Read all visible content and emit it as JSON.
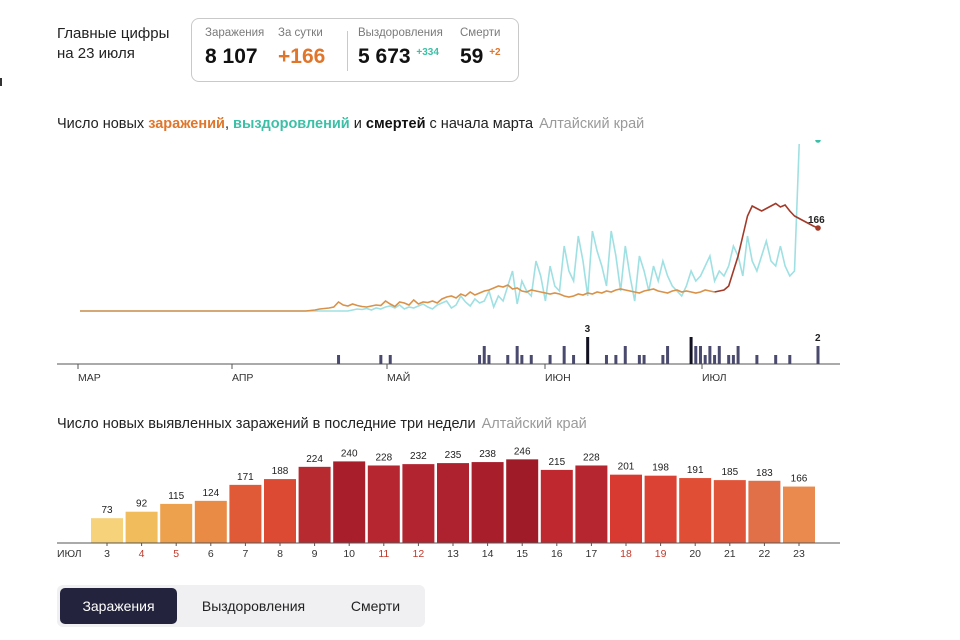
{
  "header": {
    "title_line1": "Главные цифры",
    "title_line2": "на 23 июля"
  },
  "stats": {
    "infections_label": "Заражения",
    "infections_value": "8 107",
    "daily_label": "За сутки",
    "daily_value": "+166",
    "recoveries_label": "Выздоровления",
    "recoveries_value": "5 673",
    "recoveries_delta": "+334",
    "deaths_label": "Смерти",
    "deaths_value": "59",
    "deaths_delta": "+2"
  },
  "chart1": {
    "title_part1": "Число новых ",
    "title_infections": "заражений",
    "title_sep": ", ",
    "title_recoveries": "выздоровлений",
    "title_and": " и ",
    "title_deaths": "смертей",
    "title_tail": " с начала марта",
    "region": "Алтайский край"
  },
  "chart2": {
    "title": "Число новых выявленных заражений в последние три недели",
    "region": "Алтайский край"
  },
  "tabs": [
    "Заражения",
    "Выздоровления",
    "Смерти"
  ],
  "colors": {
    "infections": "#e0762b",
    "infections_recent": "#a23a2a",
    "recoveries": "#3cbfa6",
    "recoveries_light": "#9fe0e3",
    "deaths": "#4a4a6e",
    "tab_active": "#23233d"
  },
  "chart_data": [
    {
      "type": "line",
      "x_ticks": [
        "МАР",
        "АПР",
        "МАЙ",
        "ИЮН",
        "ИЮЛ"
      ],
      "series": [
        {
          "values": [
            0,
            0,
            0,
            0,
            0,
            0,
            0,
            0,
            0,
            0,
            0,
            0,
            0,
            0,
            0,
            0,
            0,
            0,
            0,
            0,
            0,
            0,
            0,
            0,
            0,
            0,
            0,
            0,
            0,
            0,
            0,
            0,
            0,
            0,
            0,
            0,
            0,
            0,
            0,
            0,
            0,
            0,
            0,
            0,
            0,
            0,
            0,
            0,
            0,
            1,
            2,
            4,
            5,
            6,
            8,
            18,
            12,
            10,
            14,
            11,
            9,
            8,
            10,
            12,
            11,
            20,
            14,
            9,
            18,
            16,
            12,
            22,
            14,
            18,
            17,
            20,
            16,
            24,
            28,
            30,
            26,
            34,
            30,
            38,
            32,
            36,
            40,
            42,
            46,
            50,
            48,
            52,
            44,
            46,
            40,
            38,
            42,
            40,
            38,
            36,
            34,
            36,
            34,
            30,
            28,
            30,
            34,
            32,
            36,
            34,
            38,
            36,
            40,
            38,
            42,
            44,
            42,
            40,
            38,
            36,
            40,
            42,
            44,
            40,
            38,
            36,
            40,
            42,
            38,
            40,
            38,
            36,
            38,
            42,
            40,
            38,
            40,
            42,
            50,
            80,
            110,
            150,
            190,
            210,
            205,
            200,
            205,
            210,
            215,
            208,
            212,
            200,
            190,
            185,
            180,
            175,
            170,
            166
          ]
        },
        {
          "values": [
            0,
            0,
            0,
            0,
            0,
            0,
            0,
            0,
            0,
            0,
            0,
            0,
            0,
            0,
            0,
            0,
            0,
            0,
            0,
            0,
            0,
            0,
            0,
            0,
            0,
            0,
            0,
            0,
            0,
            0,
            0,
            0,
            0,
            0,
            0,
            0,
            0,
            0,
            0,
            0,
            0,
            0,
            0,
            0,
            0,
            0,
            0,
            0,
            0,
            0,
            0,
            0,
            0,
            0,
            0,
            0,
            0,
            0,
            2,
            4,
            3,
            5,
            2,
            6,
            4,
            8,
            10,
            6,
            12,
            4,
            8,
            6,
            10,
            14,
            8,
            4,
            12,
            16,
            20,
            6,
            12,
            30,
            18,
            10,
            24,
            16,
            20,
            40,
            8,
            30,
            20,
            50,
            80,
            14,
            60,
            40,
            30,
            100,
            70,
            20,
            90,
            50,
            40,
            130,
            80,
            60,
            150,
            100,
            30,
            160,
            120,
            90,
            50,
            160,
            110,
            40,
            130,
            70,
            20,
            110,
            80,
            40,
            90,
            60,
            100,
            70,
            50,
            40,
            30,
            50,
            80,
            60,
            70,
            90,
            110,
            60,
            80,
            70,
            90,
            130,
            110,
            70,
            150,
            100,
            80,
            110,
            140,
            100,
            90,
            130,
            90,
            70,
            80,
            334
          ]
        },
        {
          "values": [
            0,
            0,
            0,
            0,
            0,
            0,
            0,
            0,
            0,
            0,
            0,
            0,
            0,
            0,
            0,
            0,
            0,
            0,
            0,
            0,
            0,
            0,
            0,
            0,
            0,
            0,
            0,
            0,
            0,
            0,
            0,
            0,
            0,
            0,
            0,
            0,
            0,
            0,
            0,
            0,
            0,
            0,
            0,
            0,
            0,
            0,
            0,
            0,
            0,
            0,
            0,
            0,
            0,
            0,
            0,
            1,
            0,
            0,
            0,
            0,
            0,
            0,
            0,
            0,
            1,
            0,
            1,
            0,
            0,
            0,
            0,
            0,
            0,
            0,
            0,
            0,
            0,
            0,
            0,
            0,
            0,
            0,
            0,
            0,
            0,
            1,
            2,
            1,
            0,
            0,
            0,
            1,
            0,
            2,
            1,
            0,
            1,
            0,
            0,
            0,
            1,
            0,
            0,
            2,
            0,
            1,
            0,
            0,
            3,
            0,
            0,
            0,
            1,
            0,
            1,
            0,
            2,
            0,
            0,
            1,
            1,
            0,
            0,
            0,
            1,
            2,
            0,
            0,
            0,
            0,
            3,
            2,
            2,
            1,
            2,
            1,
            2,
            0,
            1,
            1,
            2,
            0,
            0,
            0,
            1,
            0,
            0,
            0,
            1,
            0,
            0,
            1,
            0,
            0,
            0,
            0,
            0,
            2
          ]
        }
      ],
      "annotations": [
        "334",
        "166",
        "3",
        "2"
      ]
    },
    {
      "type": "bar",
      "x_label": "ИЮЛ",
      "categories": [
        "3",
        "4",
        "5",
        "6",
        "7",
        "8",
        "9",
        "10",
        "11",
        "12",
        "13",
        "14",
        "15",
        "16",
        "17",
        "18",
        "19",
        "20",
        "21",
        "22",
        "23"
      ],
      "weekend_categories": [
        "4",
        "5",
        "11",
        "12",
        "18",
        "19"
      ],
      "values": [
        73,
        92,
        115,
        124,
        171,
        188,
        224,
        240,
        228,
        232,
        235,
        238,
        246,
        215,
        228,
        201,
        198,
        191,
        185,
        183,
        166
      ],
      "ylim": [
        0,
        260
      ]
    }
  ]
}
